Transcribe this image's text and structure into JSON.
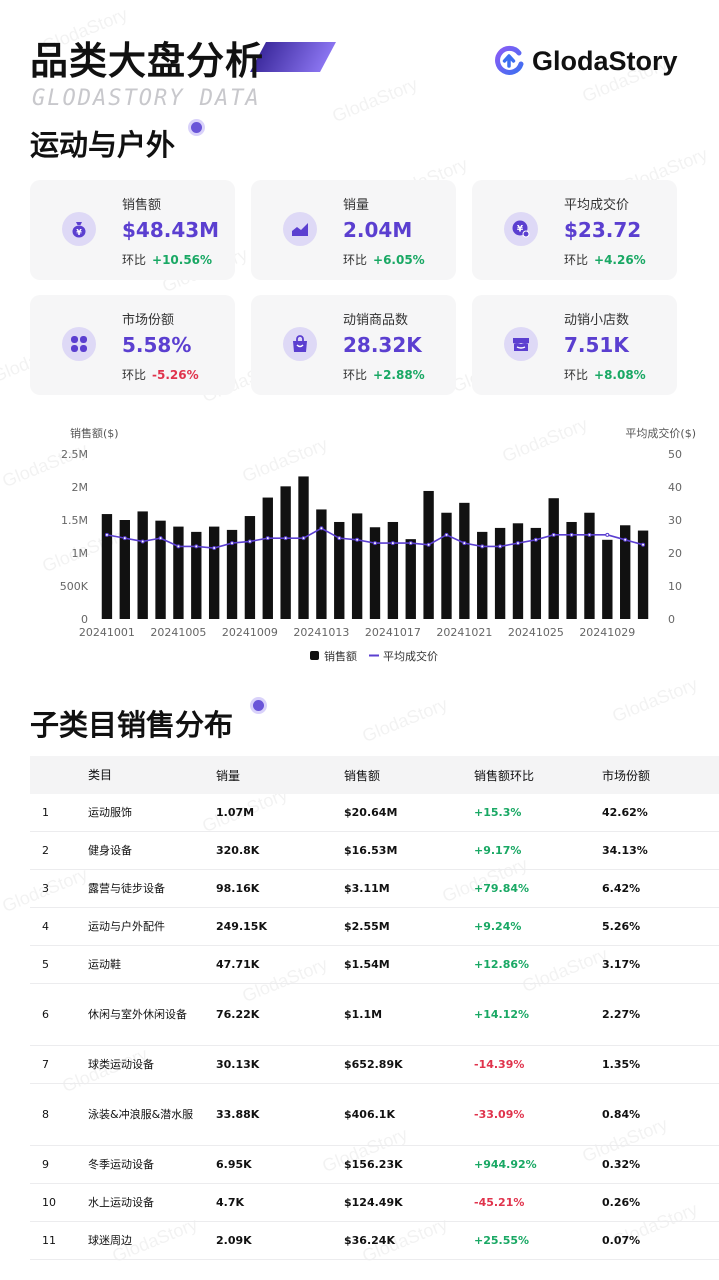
{
  "header": {
    "title": "品类大盘分析",
    "subtitle": "GLODASTORY DATA",
    "brand": "GlodaStory",
    "watermark": "GlodaStory"
  },
  "category": "运动与户外",
  "cards": [
    {
      "label": "销售额",
      "value": "$48.43M",
      "mom_label": "环比",
      "mom": "+10.56%",
      "trend": "up",
      "icon": "money-bag-icon"
    },
    {
      "label": "销量",
      "value": "2.04M",
      "mom_label": "环比",
      "mom": "+6.05%",
      "trend": "up",
      "icon": "line-chart-icon"
    },
    {
      "label": "平均成交价",
      "value": "$23.72",
      "mom_label": "环比",
      "mom": "+4.26%",
      "trend": "up",
      "icon": "yen-coin-icon"
    },
    {
      "label": "市场份额",
      "value": "5.58%",
      "mom_label": "环比",
      "mom": "-5.26%",
      "trend": "down",
      "icon": "clover-icon"
    },
    {
      "label": "动销商品数",
      "value": "28.32K",
      "mom_label": "环比",
      "mom": "+2.88%",
      "trend": "up",
      "icon": "shopping-bag-icon"
    },
    {
      "label": "动销小店数",
      "value": "7.51K",
      "mom_label": "环比",
      "mom": "+8.08%",
      "trend": "up",
      "icon": "store-icon"
    }
  ],
  "chart_data": {
    "type": "bar",
    "ylabel": "销售额($)",
    "y2label": "平均成交价($)",
    "ylim": [
      0,
      2500000
    ],
    "y2lim": [
      0,
      50
    ],
    "y_ticks": [
      "0",
      "500K",
      "1M",
      "1.5M",
      "2M",
      "2.5M"
    ],
    "y2_ticks": [
      "0",
      "10",
      "20",
      "30",
      "40",
      "50"
    ],
    "x_ticks": [
      "20241001",
      "20241005",
      "20241009",
      "20241013",
      "20241017",
      "20241021",
      "20241025",
      "20241029"
    ],
    "categories": [
      "20241001",
      "20241002",
      "20241003",
      "20241004",
      "20241005",
      "20241006",
      "20241007",
      "20241008",
      "20241009",
      "20241010",
      "20241011",
      "20241012",
      "20241013",
      "20241014",
      "20241015",
      "20241016",
      "20241017",
      "20241018",
      "20241019",
      "20241020",
      "20241021",
      "20241022",
      "20241023",
      "20241024",
      "20241025",
      "20241026",
      "20241027",
      "20241028",
      "20241029",
      "20241030",
      "20241031"
    ],
    "series": [
      {
        "name": "销售额",
        "type": "bar",
        "color": "#111111",
        "values": [
          1590000,
          1500000,
          1630000,
          1490000,
          1400000,
          1320000,
          1400000,
          1350000,
          1560000,
          1840000,
          2010000,
          2160000,
          1660000,
          1470000,
          1600000,
          1390000,
          1470000,
          1210000,
          1940000,
          1610000,
          1760000,
          1320000,
          1380000,
          1450000,
          1380000,
          1830000,
          1470000,
          1610000,
          1200000,
          1420000,
          1340000
        ]
      },
      {
        "name": "平均成交价",
        "type": "line",
        "color": "#5b3fd0",
        "values": [
          25.5,
          24.5,
          23.5,
          24.5,
          22,
          22,
          21.5,
          23,
          23.5,
          24.5,
          24.5,
          24.5,
          27.5,
          24.5,
          24,
          23,
          23,
          23,
          22.5,
          25.5,
          23,
          22,
          22,
          23,
          24,
          25.5,
          25.5,
          25.5,
          25.5,
          24,
          22.5
        ]
      }
    ],
    "legend": "bottom"
  },
  "subcategory": {
    "title": "子类目销售分布",
    "columns": [
      "类目",
      "销量",
      "销售额",
      "销售额环比",
      "市场份额"
    ],
    "rows": [
      {
        "rank": "1",
        "name": "运动服饰",
        "volume": "1.07M",
        "sales": "$20.64M",
        "mom": "+15.3%",
        "trend": "up",
        "share": "42.62%"
      },
      {
        "rank": "2",
        "name": "健身设备",
        "volume": "320.8K",
        "sales": "$16.53M",
        "mom": "+9.17%",
        "trend": "up",
        "share": "34.13%"
      },
      {
        "rank": "3",
        "name": "露营与徒步设备",
        "volume": "98.16K",
        "sales": "$3.11M",
        "mom": "+79.84%",
        "trend": "up",
        "share": "6.42%"
      },
      {
        "rank": "4",
        "name": "运动与户外配件",
        "volume": "249.15K",
        "sales": "$2.55M",
        "mom": "+9.24%",
        "trend": "up",
        "share": "5.26%"
      },
      {
        "rank": "5",
        "name": "运动鞋",
        "volume": "47.71K",
        "sales": "$1.54M",
        "mom": "+12.86%",
        "trend": "up",
        "share": "3.17%"
      },
      {
        "rank": "6",
        "name": "休闲与室外休闲设备",
        "volume": "76.22K",
        "sales": "$1.1M",
        "mom": "+14.12%",
        "trend": "up",
        "share": "2.27%"
      },
      {
        "rank": "7",
        "name": "球类运动设备",
        "volume": "30.13K",
        "sales": "$652.89K",
        "mom": "-14.39%",
        "trend": "down",
        "share": "1.35%"
      },
      {
        "rank": "8",
        "name": "泳装&冲浪服&潜水服",
        "volume": "33.88K",
        "sales": "$406.1K",
        "mom": "-33.09%",
        "trend": "down",
        "share": "0.84%"
      },
      {
        "rank": "9",
        "name": "冬季运动设备",
        "volume": "6.95K",
        "sales": "$156.23K",
        "mom": "+944.92%",
        "trend": "up",
        "share": "0.32%"
      },
      {
        "rank": "10",
        "name": "水上运动设备",
        "volume": "4.7K",
        "sales": "$124.49K",
        "mom": "-45.21%",
        "trend": "down",
        "share": "0.26%"
      },
      {
        "rank": "11",
        "name": "球迷周边",
        "volume": "2.09K",
        "sales": "$36.24K",
        "mom": "+25.55%",
        "trend": "up",
        "share": "0.07%"
      }
    ]
  }
}
